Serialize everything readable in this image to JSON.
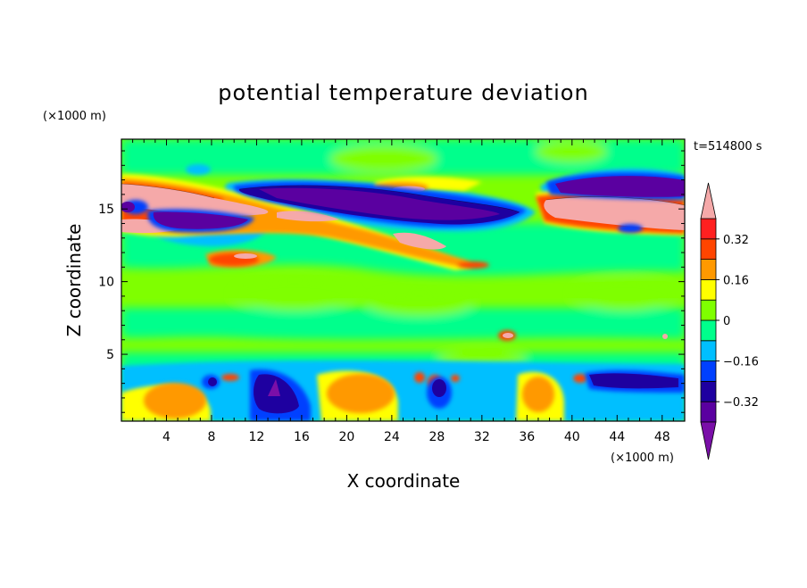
{
  "chart_data": {
    "type": "heatmap",
    "title": "potential temperature deviation",
    "xlabel": "X coordinate",
    "ylabel": "Z coordinate",
    "x_unit": "(×1000 m)",
    "z_unit": "(×1000 m)",
    "time_label": "t=514800 s",
    "xlim": [
      0,
      50
    ],
    "ylim": [
      0.4,
      19.8
    ],
    "x_ticks": [
      "4",
      "8",
      "12",
      "16",
      "20",
      "24",
      "28",
      "32",
      "36",
      "40",
      "44",
      "48"
    ],
    "x_tick_values": [
      4,
      8,
      12,
      16,
      20,
      24,
      28,
      32,
      36,
      40,
      44,
      48
    ],
    "y_ticks": [
      "5",
      "10",
      "15"
    ],
    "y_tick_values": [
      5,
      10,
      15
    ],
    "colorbar": {
      "levels": [
        -0.48,
        -0.4,
        -0.32,
        -0.24,
        -0.16,
        -0.08,
        0,
        0.08,
        0.16,
        0.24,
        0.32,
        0.4,
        0.48
      ],
      "colors": [
        "#7a0fa8",
        "#5a00a0",
        "#1e00a0",
        "#0040ff",
        "#00bfff",
        "#00ff8c",
        "#7fff00",
        "#ffff00",
        "#ff9900",
        "#ff4500",
        "#ff2020",
        "#f5a9a9"
      ],
      "labels": [
        "0.32",
        "0.16",
        "0",
        "−0.16",
        "−0.32"
      ],
      "label_values": [
        0.32,
        0.16,
        0,
        -0.16,
        -0.32
      ]
    },
    "features": [
      {
        "name": "upper warm band left",
        "x": [
          0,
          14
        ],
        "z": [
          13.5,
          16.5
        ],
        "value": 0.45
      },
      {
        "name": "upper cold band center",
        "x": [
          12,
          35
        ],
        "z": [
          14.0,
          17.0
        ],
        "value": -0.45
      },
      {
        "name": "upper warm band right",
        "x": [
          37,
          50
        ],
        "z": [
          13.5,
          15.8
        ],
        "value": 0.45
      },
      {
        "name": "upper cold band right",
        "x": [
          39,
          50
        ],
        "z": [
          16.0,
          18.0
        ],
        "value": -0.45
      },
      {
        "name": "cold lens left",
        "x": [
          3,
          11
        ],
        "z": [
          13.5,
          14.8
        ],
        "value": -0.42
      },
      {
        "name": "warm streak",
        "x": [
          22,
          34
        ],
        "z": [
          11.0,
          13.0
        ],
        "value": 0.4
      },
      {
        "name": "warm blob",
        "x": [
          7,
          14
        ],
        "z": [
          10.8,
          12.0
        ],
        "value": 0.32
      },
      {
        "name": "surface warm cells",
        "x": [
          4,
          38
        ],
        "z": [
          0.5,
          3.0
        ],
        "value": 0.3
      },
      {
        "name": "surface cold cells",
        "x": [
          11,
          46
        ],
        "z": [
          0.5,
          3.5
        ],
        "value": -0.42
      }
    ]
  }
}
